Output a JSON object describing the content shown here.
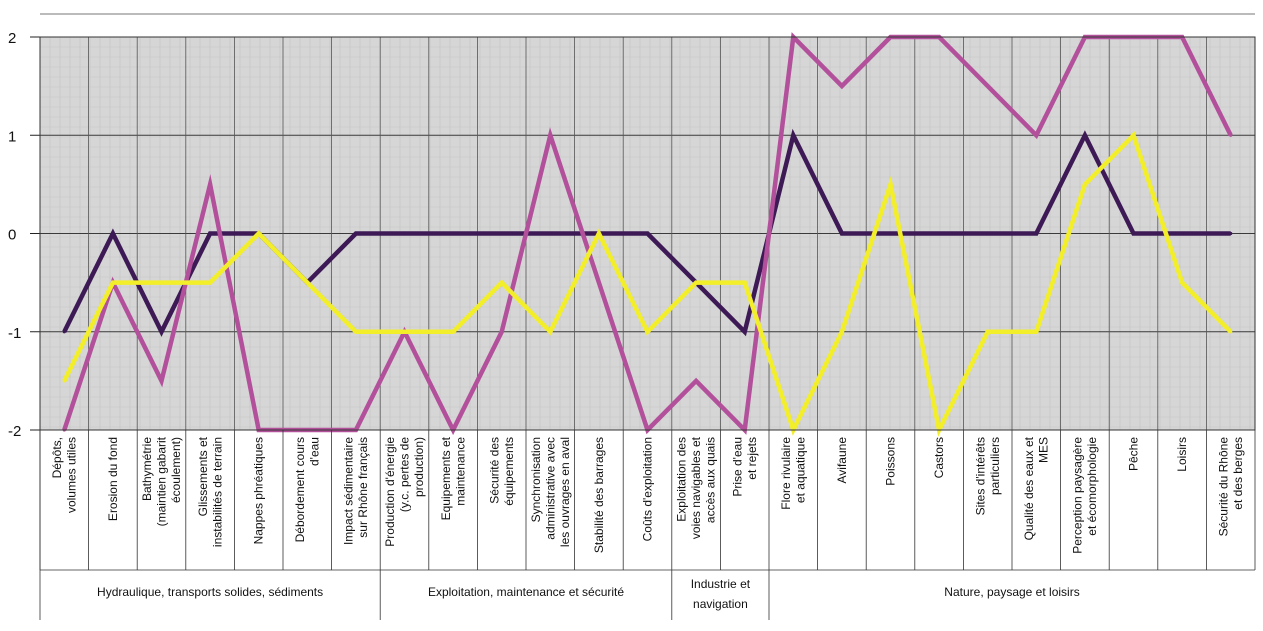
{
  "chart_data": {
    "type": "line",
    "ylim": [
      -2,
      2
    ],
    "yticks": [
      "2",
      "1",
      "0",
      "-1",
      "-2"
    ],
    "grid": true,
    "legend": "none",
    "categories": [
      [
        "Dépôts,",
        "volumes utiles"
      ],
      [
        "Erosion du fond"
      ],
      [
        "Bathymétrie",
        "(maintien gabarit",
        "écoulement)"
      ],
      [
        "Glissements et",
        "instabilités de terrain"
      ],
      [
        "Nappes phréatiques"
      ],
      [
        "Débordement cours",
        "d'eau"
      ],
      [
        "Impact sédimentaire",
        "sur Rhône français"
      ],
      [
        "Production d'énergie",
        "(y.c. pertes de",
        "production)"
      ],
      [
        "Equipements et",
        "maintenance"
      ],
      [
        "Sécurité des",
        "équipements"
      ],
      [
        "Synchronisation",
        "administrative avec",
        "les ouvrages en aval"
      ],
      [
        "Stabilité des barrages"
      ],
      [
        "Coûts d'exploitation"
      ],
      [
        "Exploitation des",
        "voies navigables et",
        "accès aux quais"
      ],
      [
        "Prise d'eau",
        "et rejets"
      ],
      [
        "Flore rivulaire",
        "et aquatique"
      ],
      [
        "Avifaune"
      ],
      [
        "Poissons"
      ],
      [
        "Castors"
      ],
      [
        "Sites d'intérêts",
        "particuliers"
      ],
      [
        "Qualité des eaux et",
        "MES"
      ],
      [
        "Perception paysagère",
        "et écomorphologie"
      ],
      [
        "Pêche"
      ],
      [
        "Loisirs"
      ],
      [
        "Sécurité du Rhône",
        "et des berges"
      ]
    ],
    "groups": [
      {
        "label": "Hydraulique, transports solides, sédiments",
        "from": 0,
        "to": 6
      },
      {
        "label": "Exploitation, maintenance et sécurité",
        "from": 7,
        "to": 12
      },
      {
        "label": [
          "Industrie et",
          "navigation"
        ],
        "from": 13,
        "to": 14
      },
      {
        "label": "Nature, paysage et loisirs",
        "from": 15,
        "to": 24
      }
    ],
    "series": [
      {
        "color": "#3d1a55",
        "values": [
          -1,
          0,
          -1,
          0,
          0,
          -0.5,
          0,
          0,
          0,
          0,
          0,
          0,
          0,
          -0.5,
          -1,
          1,
          0,
          0,
          0,
          0,
          0,
          1,
          0,
          0,
          0
        ]
      },
      {
        "color": "#b3509b",
        "values": [
          -2,
          -0.5,
          -1.5,
          0.5,
          -2,
          -2,
          -2,
          -1,
          -2,
          -1,
          1,
          -0.5,
          -2,
          -1.5,
          -2,
          2,
          1.5,
          2,
          2,
          1.5,
          1,
          2,
          2,
          2,
          1
        ]
      },
      {
        "color": "#f2ee2a",
        "values": [
          -1.5,
          -0.5,
          -0.5,
          -0.5,
          0,
          -0.5,
          -1,
          -1,
          -1,
          -0.5,
          -1,
          0,
          -1,
          -0.5,
          -0.5,
          -2,
          -1,
          0.5,
          -2,
          -1,
          -1,
          0.5,
          1,
          -0.5,
          -1
        ]
      }
    ]
  }
}
